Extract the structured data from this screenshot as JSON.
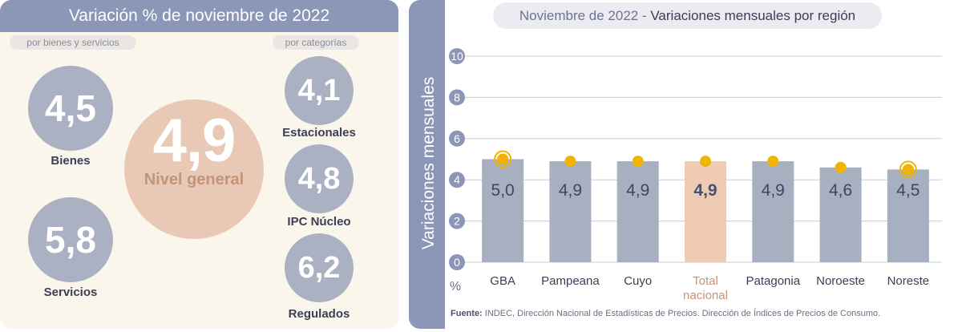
{
  "left": {
    "title": "Variación % de noviembre de 2022",
    "subtitle_left": "por bienes y servicios",
    "subtitle_right": "por categorías",
    "bienes": {
      "value": "4,5",
      "label": "Bienes"
    },
    "servicios": {
      "value": "5,8",
      "label": "Servicios"
    },
    "nivel": {
      "value": "4,9",
      "label": "Nivel general"
    },
    "estacionales": {
      "value": "4,1",
      "label": "Estacionales"
    },
    "nucleo": {
      "value": "4,8",
      "label": "IPC Núcleo"
    },
    "regulados": {
      "value": "6,2",
      "label": "Regulados"
    }
  },
  "right": {
    "title_prefix": "Noviembre de 2022 -",
    "title_main": "Variaciones mensuales por región",
    "source_label": "Fuente:",
    "source_text": "INDEC, Dirección Nacional de Estadísticas de Precios. Dirección de Índices de Precios de Consumo."
  },
  "chart_data": {
    "type": "bar",
    "title": "Noviembre de 2022 - Variaciones mensuales por región",
    "ylabel": "Variaciones mensuales",
    "yunit": "%",
    "ylim": [
      0,
      10
    ],
    "yticks": [
      0,
      2,
      4,
      6,
      8,
      10
    ],
    "grid": true,
    "categories": [
      "GBA",
      "Pampeana",
      "Cuyo",
      "Total nacional",
      "Patagonia",
      "Noroeste",
      "Noreste"
    ],
    "values": [
      5.0,
      4.9,
      4.9,
      4.9,
      4.9,
      4.6,
      4.5
    ],
    "value_labels": [
      "5,0",
      "4,9",
      "4,9",
      "4,9",
      "4,9",
      "4,6",
      "4,5"
    ],
    "highlight_index": 3,
    "ringed_marker_indices": [
      0,
      6
    ],
    "colors": {
      "bar": "#a7b0c0",
      "highlight_bar": "#efcbb4",
      "marker": "#f0b400",
      "highlight_label": "#c39478",
      "grid": "#c9ccd3"
    }
  }
}
